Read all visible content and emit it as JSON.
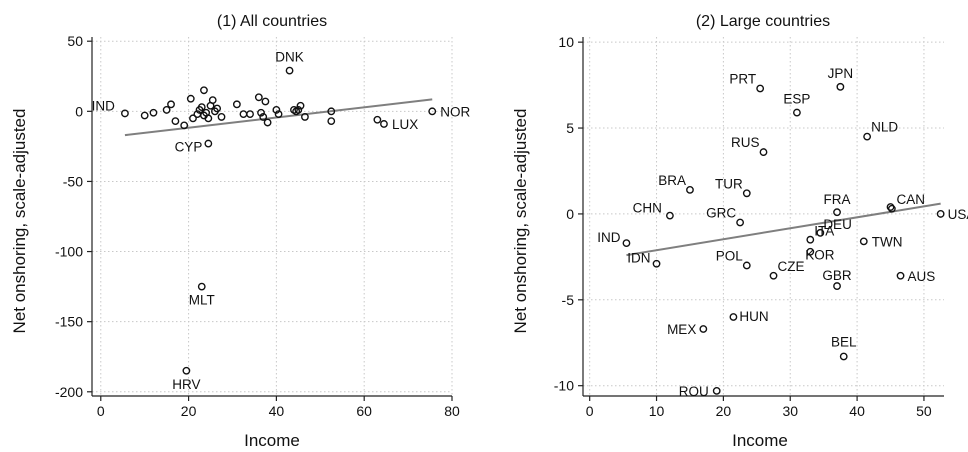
{
  "chart_data": [
    {
      "type": "scatter",
      "title": "(1) All countries",
      "xlabel": "Income",
      "ylabel": "Net onshoring, scale-adjusted",
      "xlim": [
        -2,
        80
      ],
      "ylim": [
        -203,
        53
      ],
      "xticks": [
        0,
        20,
        40,
        60,
        80
      ],
      "yticks": [
        50,
        0,
        -50,
        -100,
        -150,
        -200
      ],
      "grid": true,
      "fit_line": {
        "x": [
          5.5,
          75.5
        ],
        "y": [
          -17,
          8.5
        ]
      },
      "points": [
        {
          "x": 5.5,
          "y": -1.5,
          "label": "IND"
        },
        {
          "x": 10,
          "y": -3
        },
        {
          "x": 12,
          "y": -1
        },
        {
          "x": 15,
          "y": 1
        },
        {
          "x": 16,
          "y": 5
        },
        {
          "x": 17,
          "y": -7
        },
        {
          "x": 19,
          "y": -10
        },
        {
          "x": 20.5,
          "y": 9
        },
        {
          "x": 21,
          "y": -5
        },
        {
          "x": 22,
          "y": -2
        },
        {
          "x": 22.5,
          "y": 1
        },
        {
          "x": 23,
          "y": 3
        },
        {
          "x": 23.5,
          "y": -3
        },
        {
          "x": 23.5,
          "y": 15
        },
        {
          "x": 24,
          "y": -1
        },
        {
          "x": 24.5,
          "y": -5
        },
        {
          "x": 25,
          "y": 4
        },
        {
          "x": 25.5,
          "y": 8
        },
        {
          "x": 26,
          "y": 0
        },
        {
          "x": 26.5,
          "y": 2
        },
        {
          "x": 27.5,
          "y": -4
        },
        {
          "x": 31,
          "y": 5
        },
        {
          "x": 32.5,
          "y": -2
        },
        {
          "x": 34,
          "y": -2
        },
        {
          "x": 36,
          "y": 10
        },
        {
          "x": 36.5,
          "y": -1
        },
        {
          "x": 37,
          "y": -4
        },
        {
          "x": 37.5,
          "y": 7
        },
        {
          "x": 38,
          "y": -8
        },
        {
          "x": 40,
          "y": 1
        },
        {
          "x": 40.5,
          "y": -2
        },
        {
          "x": 43,
          "y": 29,
          "label": "DNK"
        },
        {
          "x": 44,
          "y": 1
        },
        {
          "x": 44.5,
          "y": 0
        },
        {
          "x": 45,
          "y": 1
        },
        {
          "x": 45.5,
          "y": 4
        },
        {
          "x": 46.5,
          "y": -4
        },
        {
          "x": 52.5,
          "y": 0
        },
        {
          "x": 52.5,
          "y": -7
        },
        {
          "x": 63,
          "y": -6
        },
        {
          "x": 64.5,
          "y": -9,
          "label": "LUX"
        },
        {
          "x": 75.5,
          "y": 0,
          "label": "NOR"
        },
        {
          "x": 24.5,
          "y": -23,
          "label": "CYP"
        },
        {
          "x": 23,
          "y": -125,
          "label": "MLT"
        },
        {
          "x": 19.5,
          "y": -185,
          "label": "HRV"
        }
      ]
    },
    {
      "type": "scatter",
      "title": "(2) Large countries",
      "xlabel": "Income",
      "ylabel": "Net onshoring, scale-adjusted",
      "xlim": [
        -1,
        53
      ],
      "ylim": [
        -10.6,
        10.3
      ],
      "xticks": [
        0,
        10,
        20,
        30,
        40,
        50
      ],
      "yticks": [
        10,
        5,
        0,
        -5,
        -10
      ],
      "grid": true,
      "fit_line": {
        "x": [
          5.5,
          52.5
        ],
        "y": [
          -2.4,
          0.6
        ]
      },
      "points": [
        {
          "x": 25.5,
          "y": 7.3,
          "label": "PRT"
        },
        {
          "x": 37.5,
          "y": 7.4,
          "label": "JPN"
        },
        {
          "x": 31,
          "y": 5.9,
          "label": "ESP"
        },
        {
          "x": 41.5,
          "y": 4.5,
          "label": "NLD"
        },
        {
          "x": 26,
          "y": 3.6,
          "label": "RUS"
        },
        {
          "x": 15,
          "y": 1.4,
          "label": "BRA"
        },
        {
          "x": 23.5,
          "y": 1.2,
          "label": "TUR"
        },
        {
          "x": 12,
          "y": -0.1,
          "label": "CHN"
        },
        {
          "x": 22.5,
          "y": -0.5,
          "label": "GRC"
        },
        {
          "x": 37,
          "y": 0.1,
          "label": "FRA"
        },
        {
          "x": 45,
          "y": 0.4,
          "label": "CAN"
        },
        {
          "x": 45.2,
          "y": 0.3
        },
        {
          "x": 52.5,
          "y": 0.0,
          "label": "USA"
        },
        {
          "x": 34.5,
          "y": -1.1,
          "label": "DEU"
        },
        {
          "x": 33,
          "y": -1.5,
          "label": "ITA"
        },
        {
          "x": 5.5,
          "y": -1.7,
          "label": "IND"
        },
        {
          "x": 41,
          "y": -1.6,
          "label": "TWN"
        },
        {
          "x": 10,
          "y": -2.9,
          "label": "IDN"
        },
        {
          "x": 23.5,
          "y": -3.0,
          "label": "POL"
        },
        {
          "x": 27.5,
          "y": -3.6,
          "label": "CZE"
        },
        {
          "x": 33,
          "y": -2.2,
          "label": "KOR"
        },
        {
          "x": 37,
          "y": -4.2,
          "label": "GBR"
        },
        {
          "x": 46.5,
          "y": -3.6,
          "label": "AUS"
        },
        {
          "x": 21.5,
          "y": -6.0,
          "label": "HUN"
        },
        {
          "x": 17,
          "y": -6.7,
          "label": "MEX"
        },
        {
          "x": 38,
          "y": -8.3,
          "label": "BEL"
        },
        {
          "x": 19,
          "y": -10.3,
          "label": "ROU"
        }
      ]
    }
  ]
}
